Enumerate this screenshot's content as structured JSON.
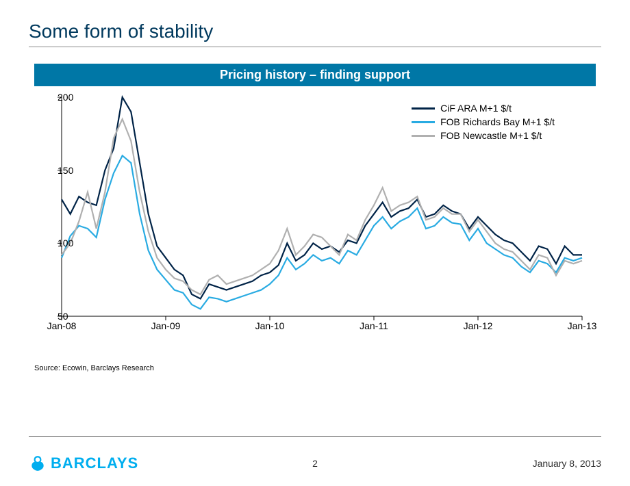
{
  "title": "Some form of stability",
  "subtitle": "Pricing history – finding support",
  "source": "Source: Ecowin, Barclays Research",
  "footer": {
    "brand": "BARCLAYS",
    "page": "2",
    "date": "January 8, 2013"
  },
  "chart": {
    "type": "line",
    "background_color": "#ffffff",
    "ylim": [
      50,
      200
    ],
    "yticks": [
      50,
      100,
      150,
      200
    ],
    "xlim": [
      0,
      60
    ],
    "xticks": [
      {
        "pos": 0,
        "label": "Jan-08"
      },
      {
        "pos": 12,
        "label": "Jan-09"
      },
      {
        "pos": 24,
        "label": "Jan-10"
      },
      {
        "pos": 36,
        "label": "Jan-11"
      },
      {
        "pos": 48,
        "label": "Jan-12"
      },
      {
        "pos": 60,
        "label": "Jan-13"
      }
    ],
    "series": [
      {
        "name": "CiF ARA M+1 $/t",
        "color": "#002347",
        "data": [
          130,
          120,
          132,
          128,
          126,
          150,
          165,
          210,
          190,
          155,
          120,
          98,
          90,
          82,
          78,
          65,
          62,
          72,
          70,
          68,
          70,
          72,
          74,
          78,
          80,
          85,
          100,
          88,
          92,
          100,
          96,
          98,
          94,
          102,
          100,
          112,
          120,
          128,
          118,
          122,
          124,
          130,
          118,
          120,
          126,
          122,
          120,
          110,
          118,
          112,
          106,
          102,
          100,
          94,
          88,
          98,
          96,
          86,
          98,
          92,
          92
        ]
      },
      {
        "name": "FOB Richards Bay M+1 $/t",
        "color": "#29abe2",
        "data": [
          90,
          105,
          112,
          110,
          104,
          130,
          148,
          160,
          155,
          120,
          95,
          82,
          75,
          68,
          66,
          58,
          55,
          63,
          62,
          60,
          62,
          64,
          66,
          68,
          72,
          78,
          90,
          82,
          86,
          92,
          88,
          90,
          86,
          95,
          92,
          102,
          112,
          118,
          110,
          115,
          118,
          124,
          110,
          112,
          118,
          114,
          113,
          102,
          110,
          100,
          96,
          92,
          90,
          84,
          80,
          88,
          86,
          80,
          90,
          88,
          90
        ]
      },
      {
        "name": "FOB Newcastle M+1 $/t",
        "color": "#b0b0b0",
        "data": [
          92,
          100,
          115,
          135,
          110,
          135,
          172,
          185,
          170,
          135,
          108,
          90,
          82,
          76,
          74,
          68,
          65,
          75,
          78,
          72,
          74,
          76,
          78,
          82,
          86,
          95,
          110,
          92,
          98,
          106,
          104,
          98,
          92,
          106,
          102,
          116,
          126,
          138,
          122,
          126,
          128,
          132,
          116,
          118,
          124,
          120,
          120,
          108,
          116,
          108,
          100,
          96,
          94,
          88,
          82,
          92,
          90,
          78,
          88,
          86,
          88
        ]
      }
    ]
  },
  "colors": {
    "title": "#00395d",
    "subtitle_bar": "#0077a6",
    "brand": "#00aeef"
  }
}
